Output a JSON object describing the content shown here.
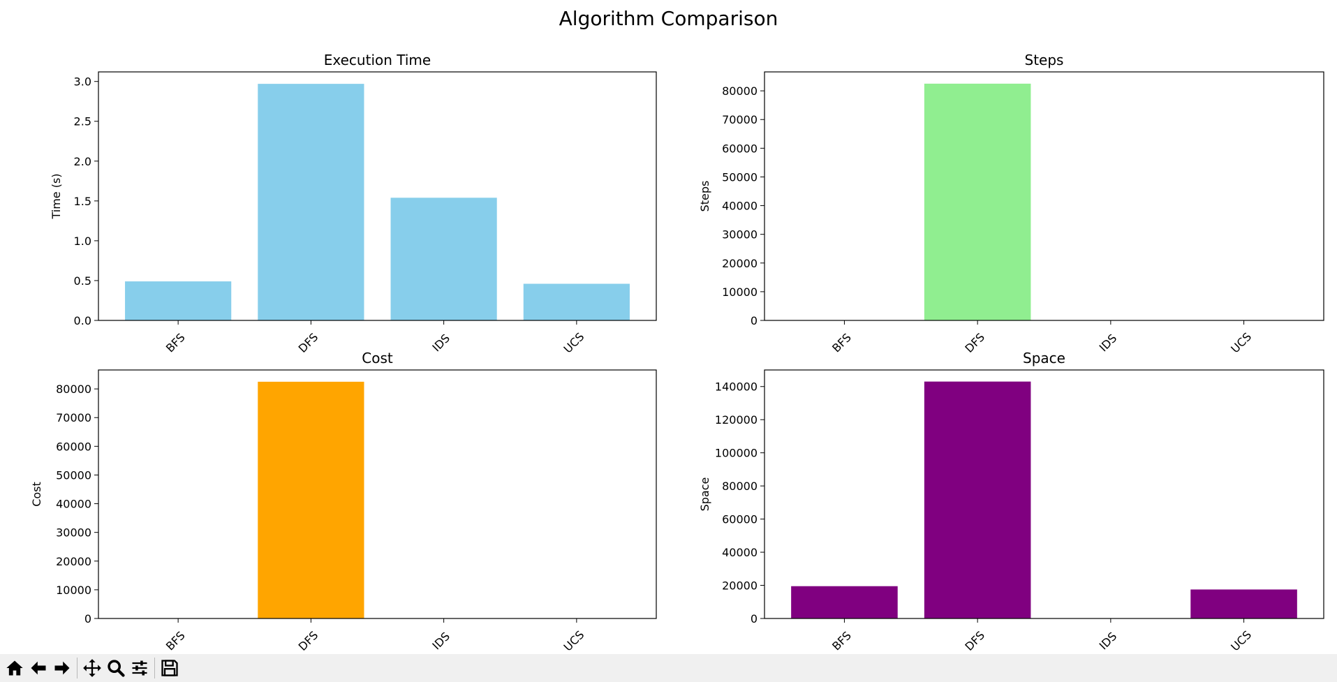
{
  "figure_title": "Algorithm Comparison",
  "colors": {
    "execution_time": "#87ceeb",
    "steps": "#90ee90",
    "cost": "#ffa500",
    "space": "#800080",
    "toolbar_bg": "#f0f0f0"
  },
  "toolbar": {
    "buttons": [
      {
        "icon": "home-icon"
      },
      {
        "icon": "back-arrow-icon"
      },
      {
        "icon": "forward-arrow-icon"
      },
      {
        "icon": "pan-move-icon"
      },
      {
        "icon": "zoom-magnifier-icon"
      },
      {
        "icon": "configure-subplots-icon"
      },
      {
        "icon": "save-floppy-icon"
      }
    ]
  },
  "chart_data": [
    {
      "type": "bar",
      "title": "Execution Time",
      "xlabel": "",
      "ylabel": "Time (s)",
      "categories": [
        "BFS",
        "DFS",
        "IDS",
        "UCS"
      ],
      "values": [
        0.49,
        2.97,
        1.54,
        0.46
      ],
      "ylim": [
        0,
        3.12
      ],
      "yticks": [
        0.0,
        0.5,
        1.0,
        1.5,
        2.0,
        2.5,
        3.0
      ],
      "ytick_labels": [
        "0.0",
        "0.5",
        "1.0",
        "1.5",
        "2.0",
        "2.5",
        "3.0"
      ],
      "color": "#87ceeb",
      "grid": false
    },
    {
      "type": "bar",
      "title": "Steps",
      "xlabel": "",
      "ylabel": "Steps",
      "categories": [
        "BFS",
        "DFS",
        "IDS",
        "UCS"
      ],
      "values": [
        0,
        82500,
        0,
        0
      ],
      "ylim": [
        0,
        86600
      ],
      "yticks": [
        0,
        10000,
        20000,
        30000,
        40000,
        50000,
        60000,
        70000,
        80000
      ],
      "ytick_labels": [
        "0",
        "10000",
        "20000",
        "30000",
        "40000",
        "50000",
        "60000",
        "70000",
        "80000"
      ],
      "color": "#90ee90",
      "grid": false
    },
    {
      "type": "bar",
      "title": "Cost",
      "xlabel": "",
      "ylabel": "Cost",
      "categories": [
        "BFS",
        "DFS",
        "IDS",
        "UCS"
      ],
      "values": [
        0,
        82500,
        0,
        0
      ],
      "ylim": [
        0,
        86600
      ],
      "yticks": [
        0,
        10000,
        20000,
        30000,
        40000,
        50000,
        60000,
        70000,
        80000
      ],
      "ytick_labels": [
        "0",
        "10000",
        "20000",
        "30000",
        "40000",
        "50000",
        "60000",
        "70000",
        "80000"
      ],
      "color": "#ffa500",
      "grid": false
    },
    {
      "type": "bar",
      "title": "Space",
      "xlabel": "",
      "ylabel": "Space",
      "categories": [
        "BFS",
        "DFS",
        "IDS",
        "UCS"
      ],
      "values": [
        19500,
        143000,
        0,
        17500
      ],
      "ylim": [
        0,
        150000
      ],
      "yticks": [
        0,
        20000,
        40000,
        60000,
        80000,
        100000,
        120000,
        140000
      ],
      "ytick_labels": [
        "0",
        "20000",
        "40000",
        "60000",
        "80000",
        "100000",
        "120000",
        "140000"
      ],
      "color": "#800080",
      "grid": false
    }
  ]
}
